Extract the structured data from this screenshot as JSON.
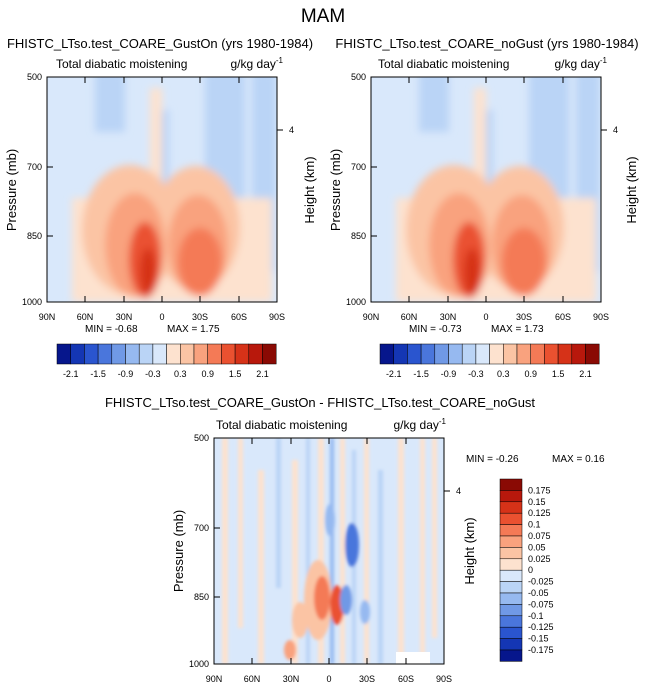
{
  "season": "MAM",
  "panels": [
    {
      "title": "FHISTC_LTso.test_COARE_GustOn (yrs 1980-1984)",
      "left_string": "Total diabatic moistening",
      "right_string": "g/kg day",
      "right_string_sup": "-1",
      "min_label": "MIN = -0.68",
      "max_label": "MAX = 1.75"
    },
    {
      "title": "FHISTC_LTso.test_COARE_noGust (yrs 1980-1984)",
      "left_string": "Total diabatic moistening",
      "right_string": "g/kg day",
      "right_string_sup": "-1",
      "min_label": "MIN = -0.73",
      "max_label": "MAX = 1.73"
    },
    {
      "title": "FHISTC_LTso.test_COARE_GustOn - FHISTC_LTso.test_COARE_noGust",
      "left_string": "Total diabatic moistening",
      "right_string": "g/kg day",
      "right_string_sup": "-1",
      "min_label": "MIN = -0.26",
      "max_label": "MAX = 0.16"
    }
  ],
  "chart_data": [
    {
      "type": "heatmap",
      "title": "FHISTC_LTso.test_COARE_GustOn (yrs 1980-1984)",
      "xlabel": "",
      "ylabel": "Pressure (mb)",
      "y2label": "Height (km)",
      "xticks": [
        "90N",
        "60N",
        "30N",
        "0",
        "30S",
        "60S",
        "90S"
      ],
      "yticks": [
        "500",
        "700",
        "850",
        "1000"
      ],
      "y2ticks": [
        "4"
      ],
      "ylim": [
        1000,
        500
      ],
      "colorbar": {
        "orientation": "horizontal",
        "levels": [
          -2.1,
          -1.8,
          -1.5,
          -1.2,
          -0.9,
          -0.6,
          -0.3,
          0,
          0.3,
          0.6,
          0.9,
          1.2,
          1.5,
          1.8,
          2.1
        ],
        "labels": [
          "-2.1",
          "-1.5",
          "-0.9",
          "-0.3",
          "0.3",
          "0.9",
          "1.5",
          "2.1"
        ]
      },
      "features": [
        {
          "lat": 15,
          "p": 920,
          "value": 1.7
        },
        {
          "lat": -20,
          "p": 920,
          "value": 1.6
        },
        {
          "lat": 40,
          "p": 780,
          "value": 0.6
        },
        {
          "lat": -45,
          "p": 780,
          "value": 0.6
        },
        {
          "lat": 0,
          "p": 620,
          "value": -0.3
        },
        {
          "lat": -35,
          "p": 560,
          "value": -0.3
        }
      ]
    },
    {
      "type": "heatmap",
      "title": "FHISTC_LTso.test_COARE_noGust (yrs 1980-1984)",
      "xlabel": "",
      "ylabel": "Pressure (mb)",
      "y2label": "Height (km)",
      "xticks": [
        "90N",
        "60N",
        "30N",
        "0",
        "30S",
        "60S",
        "90S"
      ],
      "yticks": [
        "500",
        "700",
        "850",
        "1000"
      ],
      "y2ticks": [
        "4"
      ],
      "ylim": [
        1000,
        500
      ],
      "colorbar": {
        "orientation": "horizontal",
        "levels": [
          -2.1,
          -1.8,
          -1.5,
          -1.2,
          -0.9,
          -0.6,
          -0.3,
          0,
          0.3,
          0.6,
          0.9,
          1.2,
          1.5,
          1.8,
          2.1
        ],
        "labels": [
          "-2.1",
          "-1.5",
          "-0.9",
          "-0.3",
          "0.3",
          "0.9",
          "1.5",
          "2.1"
        ]
      },
      "features": [
        {
          "lat": 15,
          "p": 920,
          "value": 1.7
        },
        {
          "lat": -20,
          "p": 920,
          "value": 1.6
        },
        {
          "lat": 40,
          "p": 780,
          "value": 0.6
        },
        {
          "lat": -45,
          "p": 780,
          "value": 0.6
        },
        {
          "lat": 0,
          "p": 620,
          "value": -0.3
        },
        {
          "lat": -35,
          "p": 560,
          "value": -0.3
        }
      ]
    },
    {
      "type": "heatmap",
      "title": "FHISTC_LTso.test_COARE_GustOn - FHISTC_LTso.test_COARE_noGust",
      "xlabel": "",
      "ylabel": "Pressure (mb)",
      "y2label": "Height (km)",
      "xticks": [
        "90N",
        "60N",
        "30N",
        "0",
        "30S",
        "60S",
        "90S"
      ],
      "yticks": [
        "500",
        "700",
        "850",
        "1000"
      ],
      "y2ticks": [
        "4"
      ],
      "ylim": [
        1000,
        500
      ],
      "colorbar": {
        "orientation": "vertical",
        "levels": [
          0.175,
          0.15,
          0.125,
          0.1,
          0.075,
          0.05,
          0.025,
          0,
          -0.025,
          -0.05,
          -0.075,
          -0.1,
          -0.125,
          -0.15,
          -0.175
        ],
        "labels": [
          "0.175",
          "0.15",
          "0.125",
          "0.1",
          "0.075",
          "0.05",
          "0.025",
          "0",
          "-0.025",
          "-0.05",
          "-0.075",
          "-0.1",
          "-0.125",
          "-0.15",
          "-0.175"
        ]
      },
      "features": [
        {
          "lat": 0,
          "p": 860,
          "value": 0.16
        },
        {
          "lat": 12,
          "p": 830,
          "value": 0.12
        },
        {
          "lat": -8,
          "p": 800,
          "value": -0.15
        },
        {
          "lat": -20,
          "p": 720,
          "value": -0.1
        }
      ]
    }
  ],
  "colors": {
    "axis": "#000000",
    "background_fill": "#d9e8fb",
    "positive_scale": [
      "#fde2cf",
      "#fbc4a4",
      "#f9a27e",
      "#f47a56",
      "#ea5130",
      "#d63218",
      "#b8180c",
      "#8a0a04"
    ],
    "negative_scale": [
      "#d9e8fb",
      "#bad4f6",
      "#96b9f0",
      "#7099e6",
      "#4a76dc",
      "#2a55cf",
      "#1436b4",
      "#06168c"
    ]
  }
}
